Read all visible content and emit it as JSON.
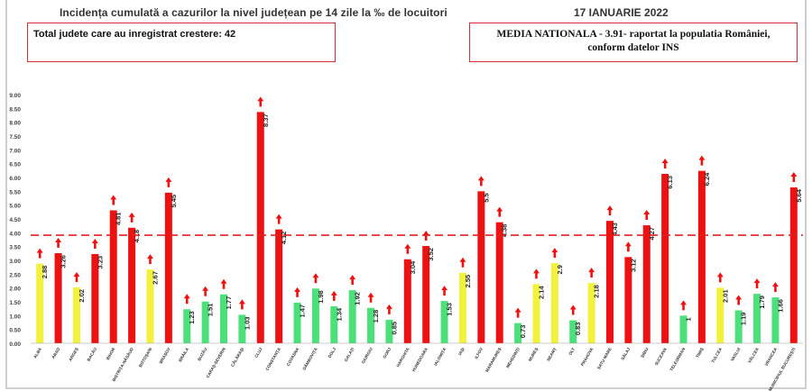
{
  "header": {
    "title": "Incidența cumulată a cazurilor la nivel județean pe 14 zile la ‰ de locuitori",
    "date": "17 IANUARIE 2022"
  },
  "info_left": "Total judete care au inregistrat crestere: 42",
  "info_right": {
    "line1": "MEDIA NATIONALA - 3.91-  raportat la populatia României,",
    "line2": "conform datelor INS"
  },
  "colors": {
    "red": "#ee1111",
    "yellow": "#f2f23c",
    "green": "#4be07a",
    "dashed_line": "#e02020",
    "arrow": "#ee1111"
  },
  "chart_data": {
    "type": "bar",
    "ylim": [
      0,
      9
    ],
    "yticks": [
      "0.00",
      "0.50",
      "1.00",
      "1.50",
      "2.00",
      "2.50",
      "3.00",
      "3.50",
      "4.00",
      "4.50",
      "5.00",
      "5.50",
      "6.00",
      "6.50",
      "7.00",
      "7.50",
      "8.00",
      "8.50",
      "9.00"
    ],
    "reference_line": {
      "value": 3.91,
      "style": "dashed"
    },
    "categories": [
      "ALBA",
      "ARAD",
      "ARGEȘ",
      "BACĂU",
      "BIHOR",
      "BISTRIȚA-NĂSĂUD",
      "BOTOȘANI",
      "BRAȘOV",
      "BRĂILA",
      "BUZĂU",
      "CARAȘ-SEVERIN",
      "CĂLĂRAȘI",
      "CLUJ",
      "CONSTANȚA",
      "COVASNA",
      "DÂMBOVIȚA",
      "DOLJ",
      "GALAȚI",
      "GIURGIU",
      "GORJ",
      "HARGHITA",
      "HUNEDOARA",
      "IALOMIȚA",
      "IAȘI",
      "ILFOV",
      "MARAMUREȘ",
      "MEHEDINȚI",
      "MUREȘ",
      "NEAMȚ",
      "OLT",
      "PRAHOVA",
      "SATU MARE",
      "SĂLAJ",
      "SIBIU",
      "SUCEAVA",
      "TELEORMAN",
      "TIMIȘ",
      "TULCEA",
      "VASLUI",
      "VÂLCEA",
      "VRANCEA",
      "MUNICIPIUL BUCUREȘTI"
    ],
    "values": [
      2.88,
      3.26,
      2.02,
      3.23,
      4.81,
      4.18,
      2.67,
      5.45,
      1.23,
      1.51,
      1.77,
      1.03,
      8.37,
      4.12,
      1.47,
      1.98,
      1.34,
      1.92,
      1.28,
      0.85,
      3.04,
      3.52,
      1.53,
      2.55,
      5.5,
      4.38,
      0.73,
      2.14,
      2.9,
      0.83,
      2.18,
      4.43,
      3.12,
      4.27,
      6.13,
      1,
      6.24,
      2.01,
      1.19,
      1.79,
      1.66,
      5.64
    ],
    "value_labels": [
      "2.88",
      "3.26",
      "2.02",
      "3.23",
      "4.81",
      "4.18",
      "2.67",
      "5.45",
      "1.23",
      "1.51",
      "1.77",
      "1.03",
      "8.37",
      "4.12",
      "1.47",
      "1.98",
      "1.34",
      "1.92",
      "1.28",
      "0.85",
      "3.04",
      "3.52",
      "1.53",
      "2.55",
      "5.5",
      "4.38",
      "0.73",
      "2.14",
      "2.9",
      "0.83",
      "2.18",
      "4.43",
      "3.12",
      "4.27",
      "6.13",
      "1",
      "6.24",
      "2.01",
      "1.19",
      "1.79",
      "1.66",
      "5.64"
    ],
    "bar_colors": [
      "yellow",
      "red",
      "yellow",
      "red",
      "red",
      "red",
      "yellow",
      "red",
      "green",
      "green",
      "green",
      "green",
      "red",
      "red",
      "green",
      "green",
      "green",
      "green",
      "green",
      "green",
      "red",
      "red",
      "green",
      "yellow",
      "red",
      "red",
      "green",
      "yellow",
      "yellow",
      "green",
      "yellow",
      "red",
      "red",
      "red",
      "red",
      "green",
      "red",
      "yellow",
      "green",
      "green",
      "green",
      "red"
    ],
    "trend": "up-arrow above every bar",
    "grid": false
  }
}
